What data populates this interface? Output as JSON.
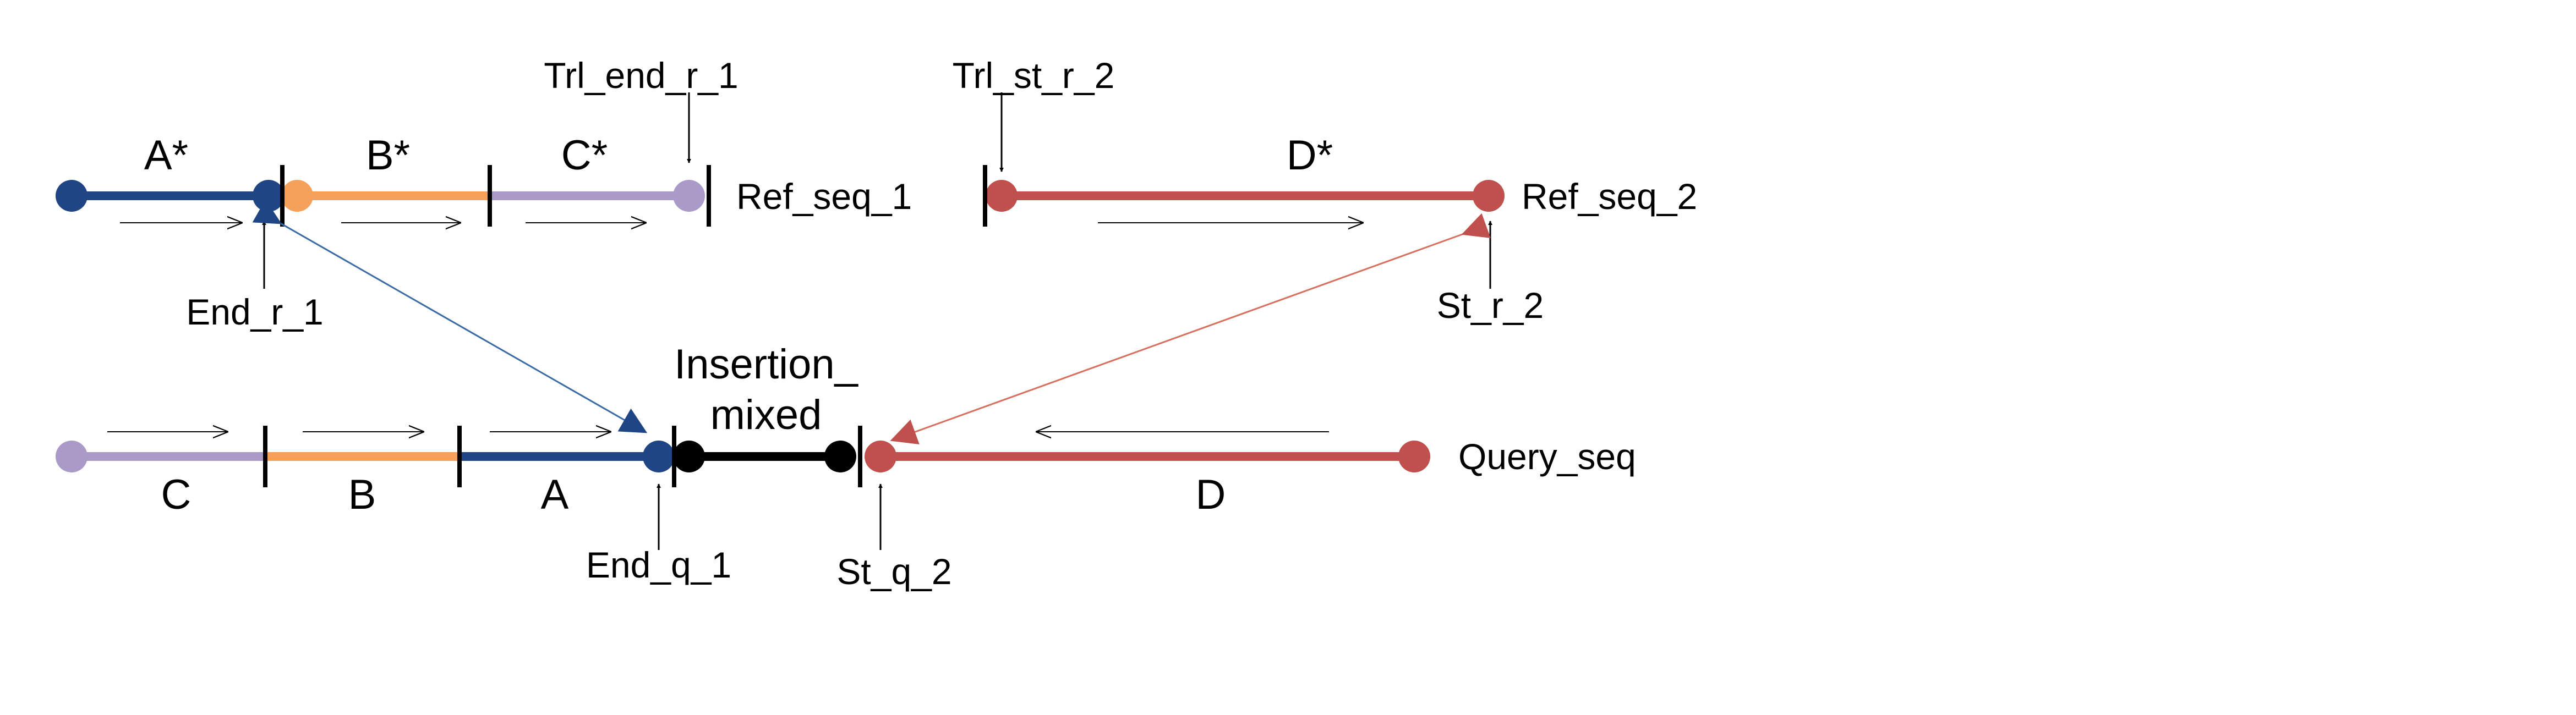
{
  "colors": {
    "navy": "#1f4585",
    "orange": "#f6a15b",
    "lavender": "#a99ac7",
    "red": "#c0504d",
    "black": "#000000",
    "blue_arrow": "#3a6ba5",
    "red_arrow": "#d8705f"
  },
  "reference": {
    "ref_seq_1_label": "Ref_seq_1",
    "ref_seq_2_label": "Ref_seq_2",
    "segments": {
      "a_star": "A*",
      "b_star": "B*",
      "c_star": "C*",
      "d_star": "D*"
    },
    "markers": {
      "trl_end_r_1": "Trl_end_r_1",
      "trl_st_r_2": "Trl_st_r_2",
      "end_r_1": "End_r_1",
      "st_r_2": "St_r_2"
    }
  },
  "query": {
    "query_seq_label": "Query_seq",
    "insertion_line1": "Insertion_",
    "insertion_line2": "mixed",
    "segments": {
      "a": "A",
      "b": "B",
      "c": "C",
      "d": "D"
    },
    "markers": {
      "end_q_1": "End_q_1",
      "st_q_2": "St_q_2"
    }
  }
}
